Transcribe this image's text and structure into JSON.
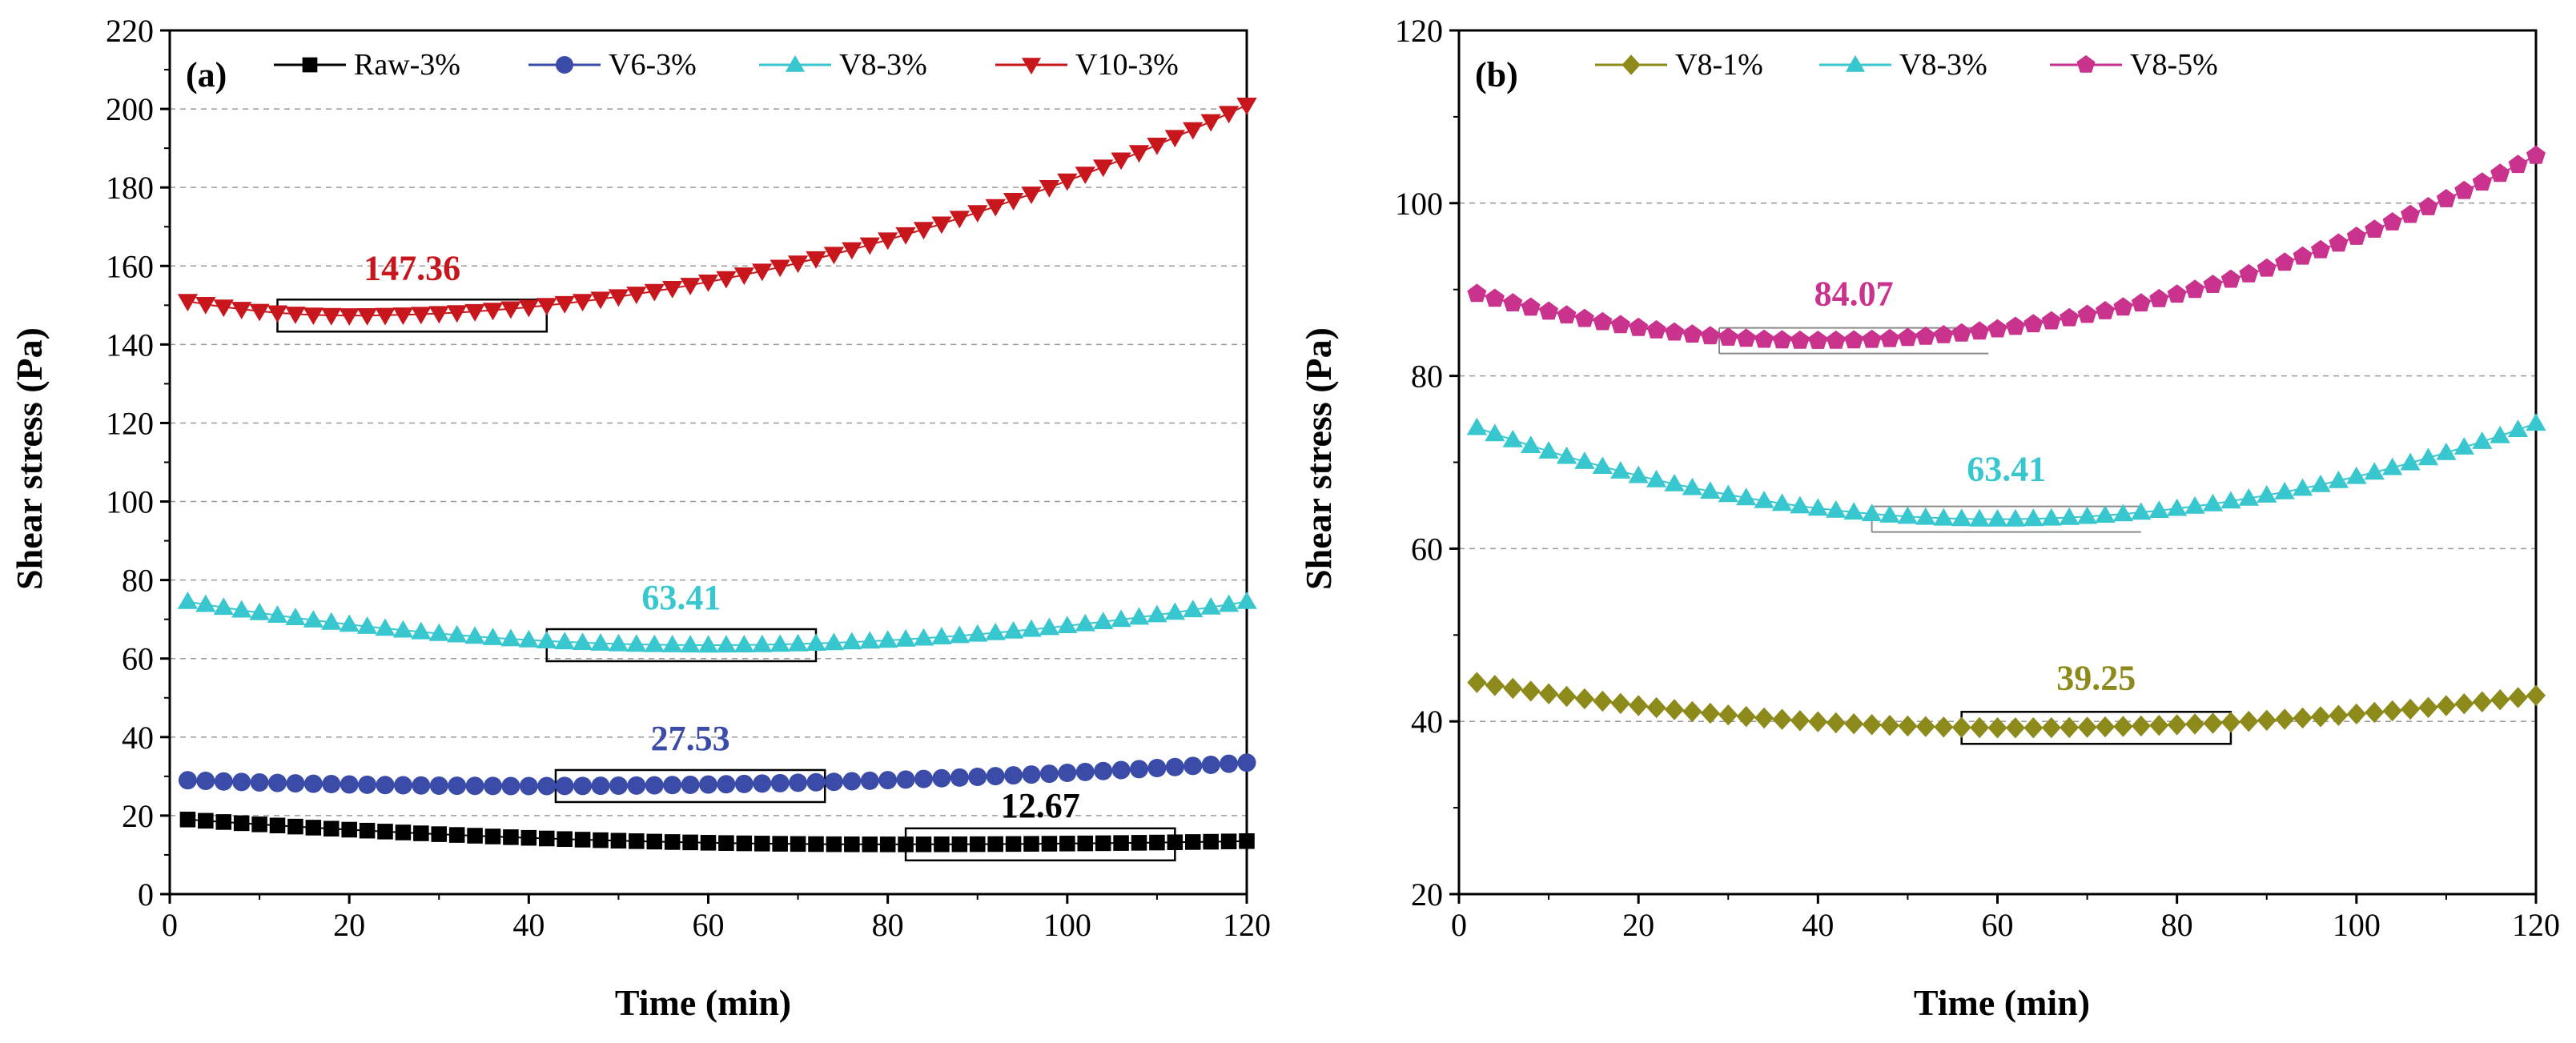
{
  "chart_data": [
    {
      "panel_label": "(a)",
      "type": "scatter",
      "xlabel": "Time (min)",
      "ylabel": "Shear stress (Pa)",
      "xlim": [
        0,
        120
      ],
      "ylim": [
        0,
        220
      ],
      "xticks": [
        0,
        20,
        40,
        60,
        80,
        100,
        120
      ],
      "yticks": [
        0,
        20,
        40,
        60,
        80,
        100,
        120,
        140,
        160,
        180,
        200,
        220
      ],
      "grid": "horizontal dashed",
      "legend_position": "top",
      "series": [
        {
          "name": "Raw-3%",
          "marker": "square",
          "color": "#000000",
          "curve": {
            "start": 19,
            "min_x": 80,
            "min_y": 12.67,
            "end": 13.5
          }
        },
        {
          "name": "V6-3%",
          "marker": "circle",
          "color": "#3b4ba8",
          "curve": {
            "start": 29,
            "min_x": 40,
            "min_y": 27.53,
            "end": 33.5
          }
        },
        {
          "name": "V8-3%",
          "marker": "triangle-up",
          "color": "#38c6cf",
          "curve": {
            "start": 74.5,
            "min_x": 60,
            "min_y": 63.41,
            "end": 74.5
          }
        },
        {
          "name": "V10-3%",
          "marker": "triangle-down",
          "color": "#c8161d",
          "curve": {
            "start": 151,
            "min_x": 20,
            "min_y": 147.36,
            "end": 201
          }
        }
      ],
      "x_start": 2,
      "x_end": 120,
      "point_count": 60,
      "annotations": [
        {
          "text": "147.36",
          "series": "V10-3%",
          "color": "#c8161d",
          "box_x": [
            12,
            42
          ],
          "style": "box"
        },
        {
          "text": "63.41",
          "series": "V8-3%",
          "color": "#38c6cf",
          "box_x": [
            42,
            72
          ],
          "style": "box"
        },
        {
          "text": "27.53",
          "series": "V6-3%",
          "color": "#3b4ba8",
          "box_x": [
            43,
            73
          ],
          "style": "box"
        },
        {
          "text": "12.67",
          "series": "Raw-3%",
          "color": "#000000",
          "box_x": [
            82,
            112
          ],
          "style": "box"
        }
      ]
    },
    {
      "panel_label": "(b)",
      "type": "scatter",
      "xlabel": "Time (min)",
      "ylabel": "Shear stress (Pa)",
      "xlim": [
        0,
        120
      ],
      "ylim": [
        20,
        120
      ],
      "xticks": [
        0,
        20,
        40,
        60,
        80,
        100,
        120
      ],
      "yticks": [
        20,
        40,
        60,
        80,
        100,
        120
      ],
      "grid": "horizontal dashed",
      "legend_position": "top",
      "series": [
        {
          "name": "V8-1%",
          "marker": "diamond",
          "color": "#8c8a1a",
          "curve": {
            "start": 44.5,
            "min_x": 62,
            "min_y": 39.25,
            "end": 43
          }
        },
        {
          "name": "V8-3%",
          "marker": "triangle-up",
          "color": "#38c6cf",
          "curve": {
            "start": 74,
            "min_x": 60,
            "min_y": 63.41,
            "end": 74.5
          }
        },
        {
          "name": "V8-5%",
          "marker": "pentagon",
          "color": "#c9338d",
          "curve": {
            "start": 89.5,
            "min_x": 40,
            "min_y": 84.07,
            "end": 105.5
          }
        }
      ],
      "x_start": 2,
      "x_end": 120,
      "point_count": 60,
      "annotations": [
        {
          "text": "84.07",
          "series": "V8-5%",
          "color": "#c9338d",
          "box_x": [
            29,
            59
          ],
          "style": "bracket"
        },
        {
          "text": "63.41",
          "series": "V8-3%",
          "color": "#38c6cf",
          "box_x": [
            46,
            76
          ],
          "style": "bracket"
        },
        {
          "text": "39.25",
          "series": "V8-1%",
          "color": "#8c8a1a",
          "box_x": [
            56,
            86
          ],
          "style": "box"
        }
      ]
    }
  ]
}
